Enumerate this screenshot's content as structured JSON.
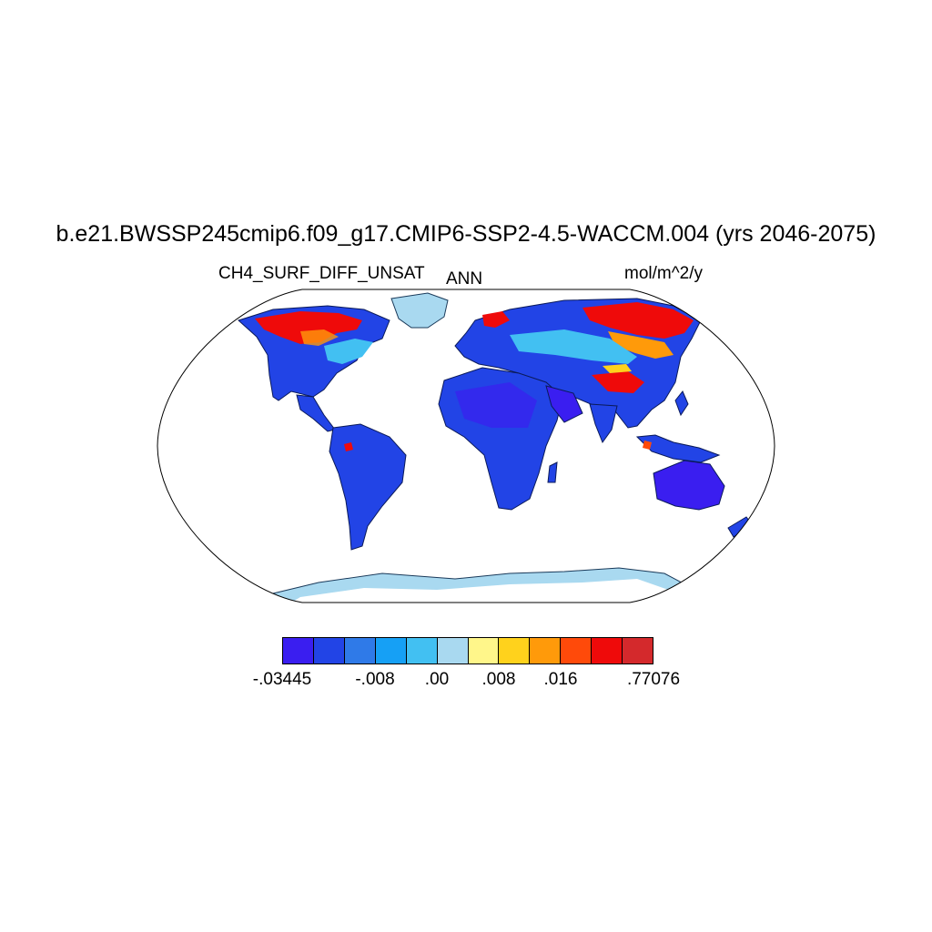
{
  "title": "b.e21.BWSSP245cmip6.f09_g17.CMIP6-SSP2-4.5-WACCM.004 (yrs 2046-2075)",
  "variable": "CH4_SURF_DIFF_UNSAT",
  "season": "ANN",
  "units": "mol/m^2/y",
  "colorbar": {
    "colors": [
      "#3a1ef0",
      "#2244e6",
      "#2f7ae8",
      "#16a0f5",
      "#42c0f2",
      "#a9d9f0",
      "#fff68a",
      "#ffd21c",
      "#ff9a0a",
      "#ff4a0a",
      "#ef0a0a",
      "#d4292c"
    ],
    "labels": [
      "-.03445",
      "-.008",
      ".00",
      ".008",
      ".016",
      ".77076"
    ],
    "label_boundaries": [
      0,
      3,
      5,
      7,
      9,
      12
    ]
  },
  "chart_data": {
    "type": "heatmap",
    "title": "b.e21.BWSSP245cmip6.f09_g17.CMIP6-SSP2-4.5-WACCM.004 (yrs 2046-2075)",
    "subtitle_left": "CH4_SURF_DIFF_UNSAT",
    "subtitle_center": "ANN",
    "subtitle_right": "mol/m^2/y",
    "projection": "Robinson",
    "levels": [
      -0.03445,
      -0.008,
      0.0,
      0.008,
      0.016,
      0.77076
    ]
  }
}
